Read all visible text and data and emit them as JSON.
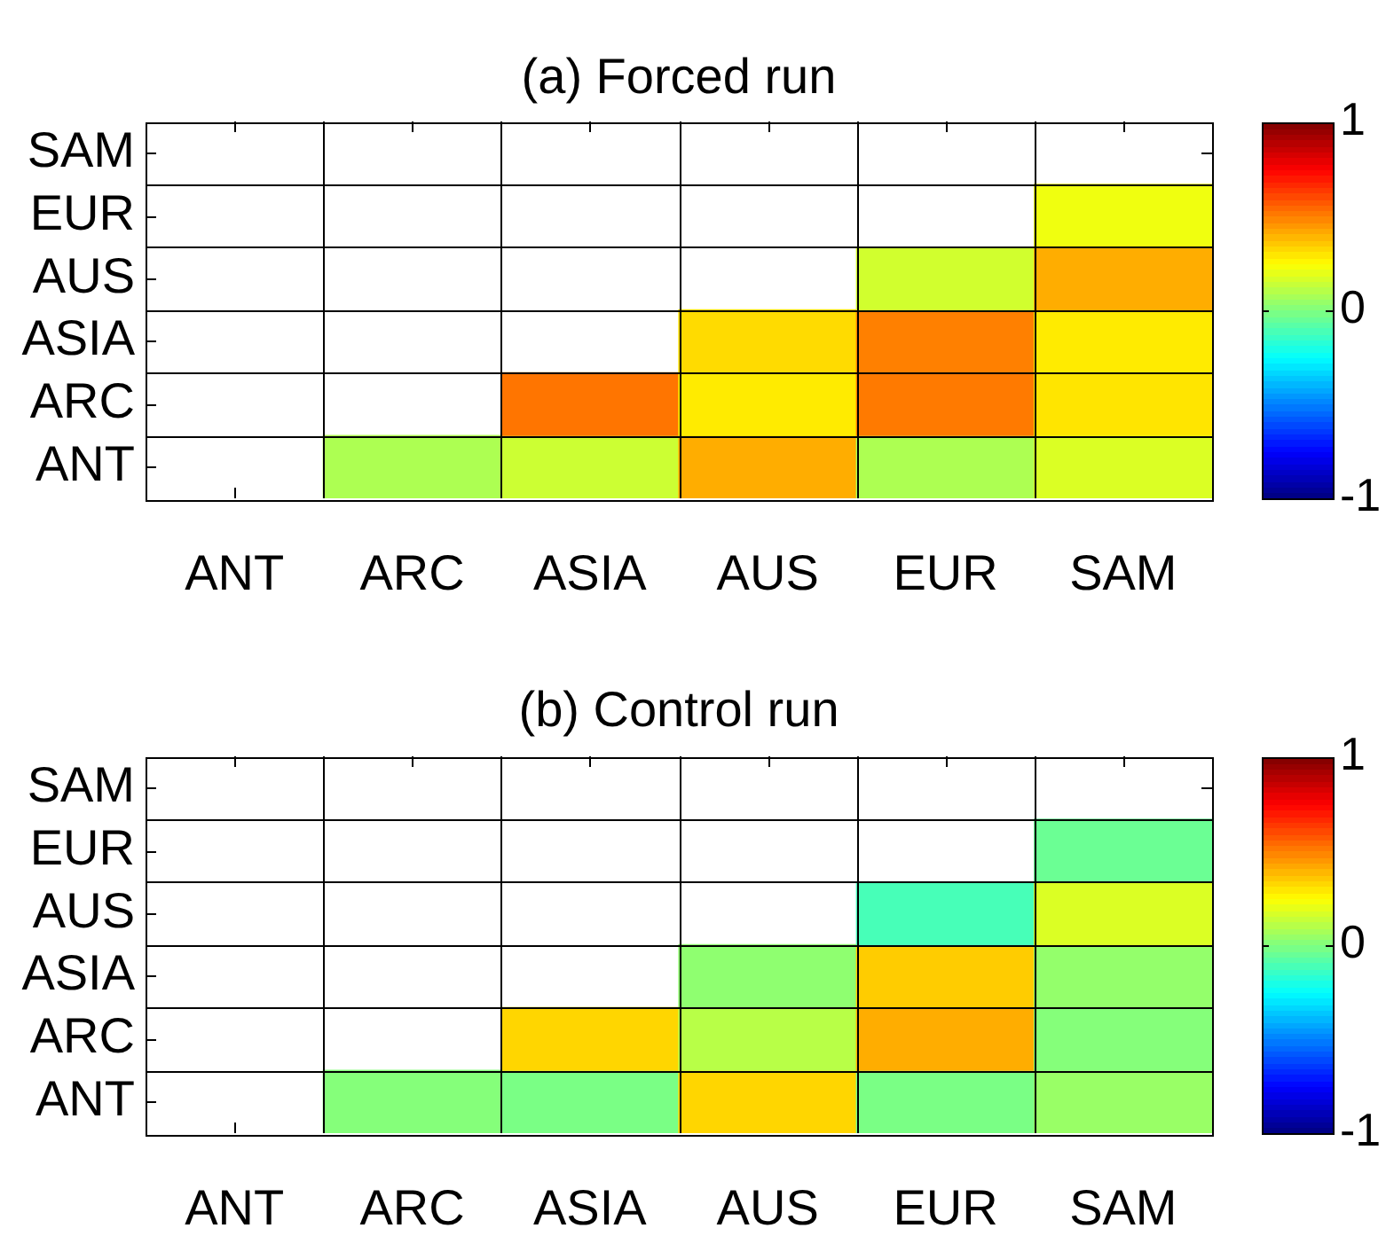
{
  "chart_data": [
    {
      "type": "heatmap",
      "title": "(a) Forced run",
      "categories": [
        "ANT",
        "ARC",
        "ASIA",
        "AUS",
        "EUR",
        "SAM"
      ],
      "y_categories": [
        "SAM",
        "EUR",
        "AUS",
        "ASIA",
        "ARC",
        "ANT"
      ],
      "cells": [
        [
          null,
          null,
          null,
          null,
          null,
          null
        ],
        [
          null,
          null,
          null,
          null,
          null,
          0.22
        ],
        [
          null,
          null,
          null,
          null,
          0.16,
          0.41
        ],
        [
          null,
          null,
          null,
          0.32,
          0.5,
          0.29
        ],
        [
          null,
          null,
          0.52,
          0.29,
          0.51,
          0.3
        ],
        [
          null,
          0.09,
          0.15,
          0.41,
          0.09,
          0.18
        ]
      ],
      "clim": [
        -1,
        1
      ],
      "cticks": [
        -1,
        0,
        1
      ],
      "grid": true
    },
    {
      "type": "heatmap",
      "title": "(b) Control run",
      "categories": [
        "ANT",
        "ARC",
        "ASIA",
        "AUS",
        "EUR",
        "SAM"
      ],
      "y_categories": [
        "SAM",
        "EUR",
        "AUS",
        "ASIA",
        "ARC",
        "ANT"
      ],
      "cells": [
        [
          null,
          null,
          null,
          null,
          null,
          null
        ],
        [
          null,
          null,
          null,
          null,
          null,
          -0.04
        ],
        [
          null,
          null,
          null,
          null,
          -0.11,
          0.18
        ],
        [
          null,
          null,
          null,
          0.03,
          0.35,
          0.04
        ],
        [
          null,
          null,
          0.33,
          0.11,
          0.41,
          0.01
        ],
        [
          null,
          0.01,
          -0.01,
          0.33,
          -0.01,
          0.05
        ]
      ],
      "clim": [
        -1,
        1
      ],
      "cticks": [
        -1,
        0,
        1
      ],
      "grid": true
    }
  ]
}
